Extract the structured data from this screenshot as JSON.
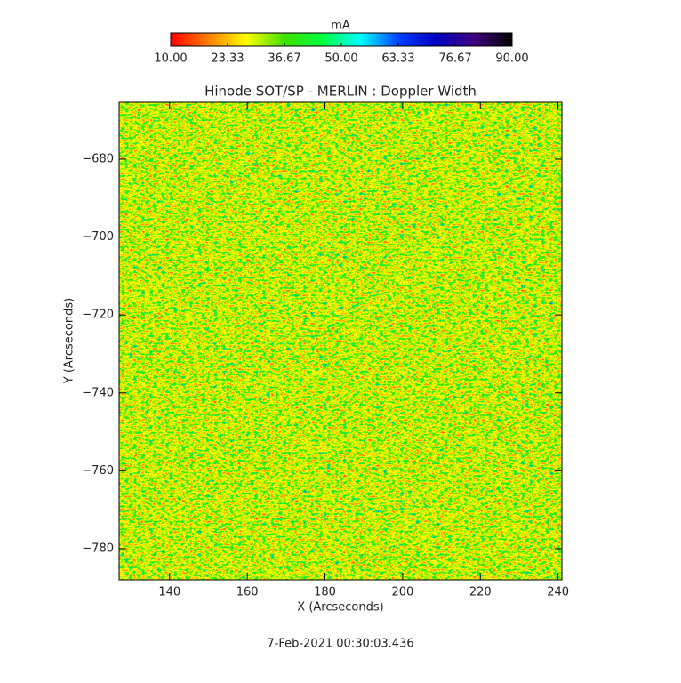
{
  "chart_data": {
    "type": "heatmap",
    "title": "Hinode SOT/SP - MERLIN : Doppler Width",
    "x_label": "X (Arcseconds)",
    "y_label": "Y (Arcseconds)",
    "xlim": [
      127,
      241
    ],
    "xticks": [
      140,
      160,
      180,
      200,
      220,
      240
    ],
    "ylim": [
      -788,
      -665.4
    ],
    "yticks": [
      {
        "value": -680,
        "label": "−680"
      },
      {
        "value": -700,
        "label": "−700"
      },
      {
        "value": -720,
        "label": "−720"
      },
      {
        "value": -740,
        "label": "−740"
      },
      {
        "value": -760,
        "label": "−760"
      },
      {
        "value": -780,
        "label": "−780"
      }
    ],
    "colorbar": {
      "label": "mA",
      "lim": [
        10,
        90
      ],
      "ticks": [
        {
          "value": 10,
          "label": "10.00"
        },
        23.33,
        36.67,
        {
          "value": 50,
          "label": "50.00"
        },
        63.33,
        76.67,
        {
          "value": 90,
          "label": "90.00"
        }
      ],
      "colormap": [
        "#ff0000",
        "#ff8000",
        "#ffff00",
        "#40e000",
        "#00ff40",
        "#00ffff",
        "#0040ff",
        "#0000c0",
        "#400080",
        "#000000"
      ]
    },
    "date": "7-Feb-2021 00:30:03.436"
  }
}
